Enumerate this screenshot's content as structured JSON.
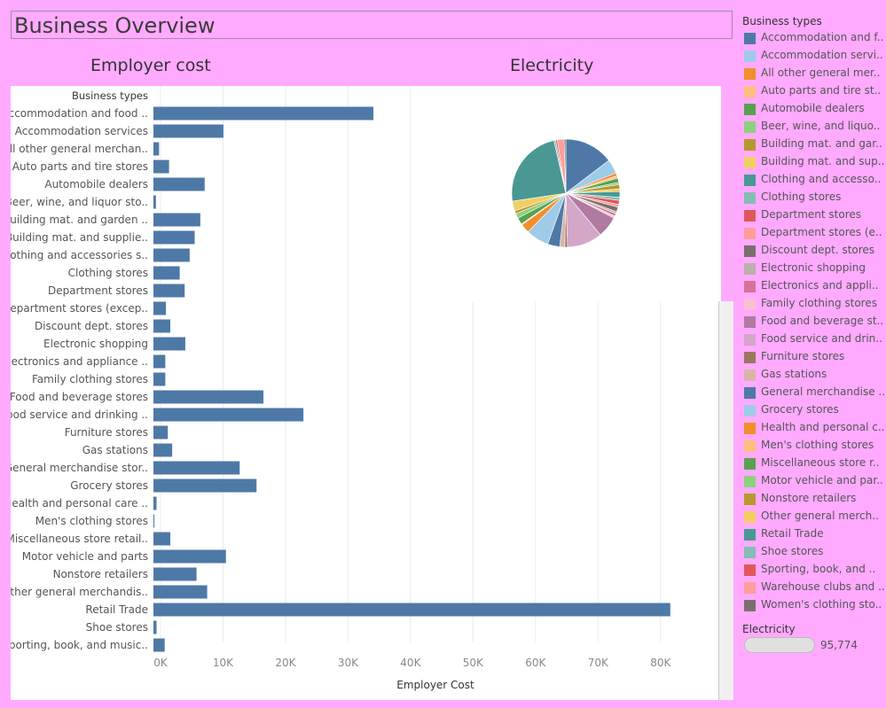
{
  "dashboard": {
    "title": "Business Overview"
  },
  "panels": {
    "bar_title": "Employer cost",
    "pie_title": "Electricity"
  },
  "colors": {
    "background": "#ffaaff",
    "bar": "#4e79a7"
  },
  "legend": {
    "title": "Business types",
    "items": [
      {
        "label": "Accommodation and f..",
        "color": "#4e79a7"
      },
      {
        "label": "Accommodation servi..",
        "color": "#a0cbe8"
      },
      {
        "label": "All other general mer..",
        "color": "#f28e2b"
      },
      {
        "label": "Auto parts and tire st..",
        "color": "#ffbe7d"
      },
      {
        "label": "Automobile dealers",
        "color": "#59a14f"
      },
      {
        "label": "Beer, wine, and liquo..",
        "color": "#8cd17d"
      },
      {
        "label": "Building mat. and gar..",
        "color": "#b6992d"
      },
      {
        "label": "Building mat. and sup..",
        "color": "#f1ce63"
      },
      {
        "label": "Clothing and accesso..",
        "color": "#499894"
      },
      {
        "label": "Clothing stores",
        "color": "#86bcb6"
      },
      {
        "label": "Department stores",
        "color": "#e15759"
      },
      {
        "label": "Department stores (e..",
        "color": "#ff9d9a"
      },
      {
        "label": "Discount dept. stores",
        "color": "#79706e"
      },
      {
        "label": "Electronic shopping",
        "color": "#bab0ac"
      },
      {
        "label": "Electronics and appli..",
        "color": "#d37295"
      },
      {
        "label": "Family clothing stores",
        "color": "#fabfd2"
      },
      {
        "label": "Food and beverage st..",
        "color": "#b07aa1"
      },
      {
        "label": "Food service and drin..",
        "color": "#d4a6c8"
      },
      {
        "label": "Furniture stores",
        "color": "#9d7660"
      },
      {
        "label": "Gas stations",
        "color": "#d7b5a6"
      },
      {
        "label": "General merchandise ..",
        "color": "#4e79a7"
      },
      {
        "label": "Grocery stores",
        "color": "#a0cbe8"
      },
      {
        "label": "Health and personal c..",
        "color": "#f28e2b"
      },
      {
        "label": "Men's clothing stores",
        "color": "#ffbe7d"
      },
      {
        "label": "Miscellaneous store r..",
        "color": "#59a14f"
      },
      {
        "label": "Motor vehicle and par..",
        "color": "#8cd17d"
      },
      {
        "label": "Nonstore retailers",
        "color": "#b6992d"
      },
      {
        "label": "Other general merch..",
        "color": "#f1ce63"
      },
      {
        "label": "Retail Trade",
        "color": "#499894"
      },
      {
        "label": "Shoe stores",
        "color": "#86bcb6"
      },
      {
        "label": "Sporting, book, and ..",
        "color": "#e15759"
      },
      {
        "label": "Warehouse clubs and ..",
        "color": "#ff9d9a"
      },
      {
        "label": "Women's clothing sto..",
        "color": "#79706e"
      }
    ]
  },
  "size_legend": {
    "title": "Electricity",
    "value": "95,774"
  },
  "chart_data": [
    {
      "type": "bar",
      "orientation": "horizontal",
      "title": "Employer cost",
      "category_header": "Business types",
      "xlabel": "Employer Cost",
      "xlim": [
        0,
        85000
      ],
      "x_ticks": [
        0,
        10000,
        20000,
        30000,
        40000,
        50000,
        60000,
        70000,
        80000
      ],
      "x_tick_labels": [
        "0K",
        "10K",
        "20K",
        "30K",
        "40K",
        "50K",
        "60K",
        "70K",
        "80K"
      ],
      "grid": true,
      "categories": [
        "Accommodation and food ..",
        "Accommodation services",
        "All other general merchan..",
        "Auto parts and tire stores",
        "Automobile dealers",
        "Beer, wine, and liquor sto..",
        "Building mat. and garden ..",
        "Building mat. and supplie..",
        "Clothing and accessories s..",
        "Clothing stores",
        "Department stores",
        "Department stores (excep..",
        "Discount dept. stores",
        "Electronic shopping",
        "Electronics and appliance ..",
        "Family clothing stores",
        "Food and beverage stores",
        "Food service and drinking ..",
        "Furniture stores",
        "Gas stations",
        "General merchandise stor..",
        "Grocery stores",
        "Health and personal care ..",
        "Men's clothing stores",
        "Miscellaneous store retail..",
        "Motor vehicle and parts",
        "Nonstore retailers",
        "Other general merchandis..",
        "Retail Trade",
        "Shoe stores",
        "Sporting, book, and music.."
      ],
      "values": [
        35200,
        11200,
        900,
        2500,
        8200,
        400,
        7500,
        6600,
        5800,
        4200,
        5000,
        2000,
        2700,
        5100,
        1900,
        1900,
        17600,
        24000,
        2300,
        3000,
        13800,
        16500,
        500,
        150,
        2700,
        11600,
        6900,
        8600,
        82700,
        500,
        1800
      ],
      "color": "#4e79a7"
    },
    {
      "type": "pie",
      "title": "Electricity",
      "categories": [
        "Accommodation and f..",
        "Accommodation servi..",
        "All other general mer..",
        "Auto parts and tire st..",
        "Automobile dealers",
        "Beer, wine, and liquo..",
        "Building mat. and gar..",
        "Building mat. and sup..",
        "Clothing and accesso..",
        "Clothing stores",
        "Department stores",
        "Department stores (e..",
        "Discount dept. stores",
        "Electronic shopping",
        "Electronics and appli..",
        "Family clothing stores",
        "Food and beverage st..",
        "Food service and drin..",
        "Furniture stores",
        "Gas stations",
        "General merchandise ..",
        "Grocery stores",
        "Health and personal c..",
        "Men's clothing stores",
        "Miscellaneous store r..",
        "Motor vehicle and par..",
        "Nonstore retailers",
        "Other general merch..",
        "Retail Trade",
        "Shoe stores",
        "Sporting, book, and ..",
        "Warehouse clubs and ..",
        "Women's clothing sto.."
      ],
      "values": [
        14.5,
        4.2,
        0.9,
        0.7,
        1.3,
        0.6,
        1.3,
        0.8,
        1.7,
        0.9,
        1.2,
        0.8,
        1.4,
        0.6,
        0.8,
        0.6,
        6.3,
        10.4,
        0.8,
        1.5,
        3.6,
        6.8,
        2.7,
        0.3,
        2.0,
        1.4,
        0.9,
        2.9,
        23.6,
        0.5,
        0.5,
        2.0,
        0.5
      ]
    }
  ]
}
